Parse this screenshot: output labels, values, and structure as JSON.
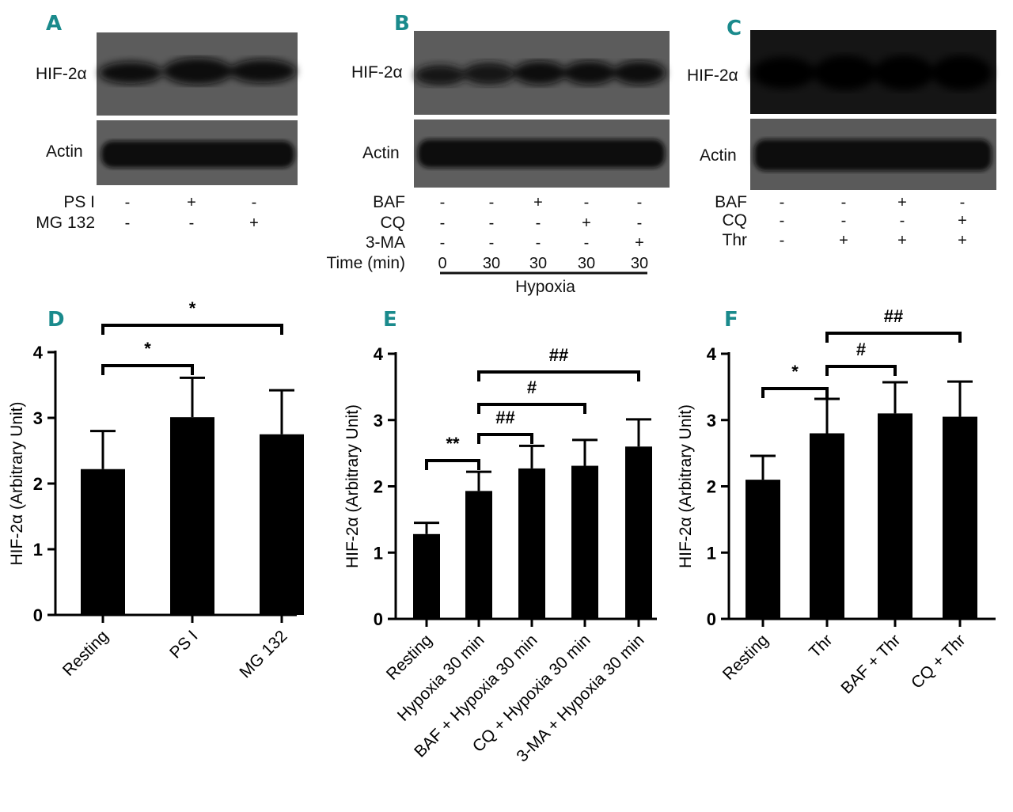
{
  "colors": {
    "panel_letter": "#1a8a8c",
    "bar": "#000000",
    "blot_bg": "#5a5a5a",
    "blot_band": "#101010"
  },
  "blots": [
    {
      "letter": "A",
      "rows": [
        "HIF-2α",
        "Actin"
      ],
      "conditions": [
        {
          "label": "PS I",
          "signs": [
            "-",
            "+",
            "-"
          ]
        },
        {
          "label": "MG 132",
          "signs": [
            "-",
            "-",
            "+"
          ]
        }
      ]
    },
    {
      "letter": "B",
      "rows": [
        "HIF-2α",
        "Actin"
      ],
      "conditions": [
        {
          "label": "BAF",
          "signs": [
            "-",
            "-",
            "+",
            "-",
            "-"
          ]
        },
        {
          "label": "CQ",
          "signs": [
            "-",
            "-",
            "-",
            "+",
            "-"
          ]
        },
        {
          "label": "3-MA",
          "signs": [
            "-",
            "-",
            "-",
            "-",
            "+"
          ]
        },
        {
          "label": "Time (min)",
          "signs": [
            "0",
            "30",
            "30",
            "30",
            "30"
          ]
        }
      ],
      "underline_label": "Hypoxia"
    },
    {
      "letter": "C",
      "rows": [
        "HIF-2α",
        "Actin"
      ],
      "conditions": [
        {
          "label": "BAF",
          "signs": [
            "-",
            "-",
            "+",
            "-"
          ]
        },
        {
          "label": "CQ",
          "signs": [
            "-",
            "-",
            "-",
            "+"
          ]
        },
        {
          "label": "Thr",
          "signs": [
            "-",
            "+",
            "+",
            "+"
          ]
        }
      ]
    }
  ],
  "chart_data": [
    {
      "letter": "D",
      "type": "bar",
      "categories": [
        "Resting",
        "PS I",
        "MG 132"
      ],
      "values": [
        2.22,
        3.01,
        2.75
      ],
      "errors": [
        0.58,
        0.6,
        0.67
      ],
      "ylabel": "HIF-2α (Arbitrary Unit)",
      "ylim": [
        0,
        4
      ],
      "yticks": [
        "0",
        "1",
        "2",
        "3",
        "4"
      ],
      "significance": [
        {
          "from": 0,
          "to": 1,
          "label": "*"
        },
        {
          "from": 0,
          "to": 2,
          "label": "*"
        }
      ]
    },
    {
      "letter": "E",
      "type": "bar",
      "categories": [
        "Resting",
        "Hypoxia 30 min",
        "BAF + Hypoxia 30 min",
        "CQ + Hypoxia 30 min",
        "3-MA + Hypoxia 30 min"
      ],
      "values": [
        1.28,
        1.93,
        2.27,
        2.31,
        2.6
      ],
      "errors": [
        0.17,
        0.29,
        0.34,
        0.39,
        0.41
      ],
      "ylabel": "HIF-2α (Arbitrary Unit)",
      "ylim": [
        0,
        4
      ],
      "yticks": [
        "0",
        "1",
        "2",
        "3",
        "4"
      ],
      "significance": [
        {
          "from": 0,
          "to": 1,
          "label": "**"
        },
        {
          "from": 1,
          "to": 2,
          "label": "##"
        },
        {
          "from": 1,
          "to": 3,
          "label": "#"
        },
        {
          "from": 1,
          "to": 4,
          "label": "##"
        }
      ]
    },
    {
      "letter": "F",
      "type": "bar",
      "categories": [
        "Resting",
        "Thr",
        "BAF + Thr",
        "CQ + Thr"
      ],
      "values": [
        2.1,
        2.8,
        3.1,
        3.05
      ],
      "errors": [
        0.36,
        0.52,
        0.47,
        0.53
      ],
      "ylabel": "HIF-2α (Arbitrary Unit)",
      "ylim": [
        0,
        4
      ],
      "yticks": [
        "0",
        "1",
        "2",
        "3",
        "4"
      ],
      "significance": [
        {
          "from": 0,
          "to": 1,
          "label": "*"
        },
        {
          "from": 1,
          "to": 2,
          "label": "#"
        },
        {
          "from": 1,
          "to": 3,
          "label": "##"
        }
      ]
    }
  ]
}
